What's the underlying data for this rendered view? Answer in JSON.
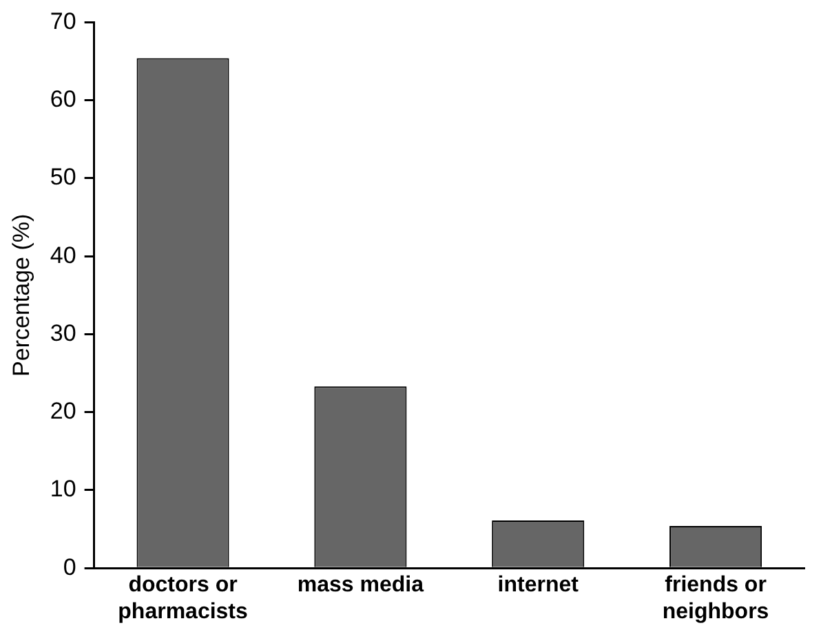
{
  "chart_data": {
    "type": "bar",
    "ylabel": "Percentage (%)",
    "categories": [
      "doctors or pharmacists",
      "mass media",
      "internet",
      "friends or neighbors"
    ],
    "values": [
      65.4,
      23.3,
      6.1,
      5.4
    ],
    "color": "#666666",
    "ylim": [
      0,
      70
    ],
    "yticks": [
      0,
      10,
      20,
      30,
      40,
      50,
      60,
      70
    ],
    "grid": false,
    "legend": false
  }
}
